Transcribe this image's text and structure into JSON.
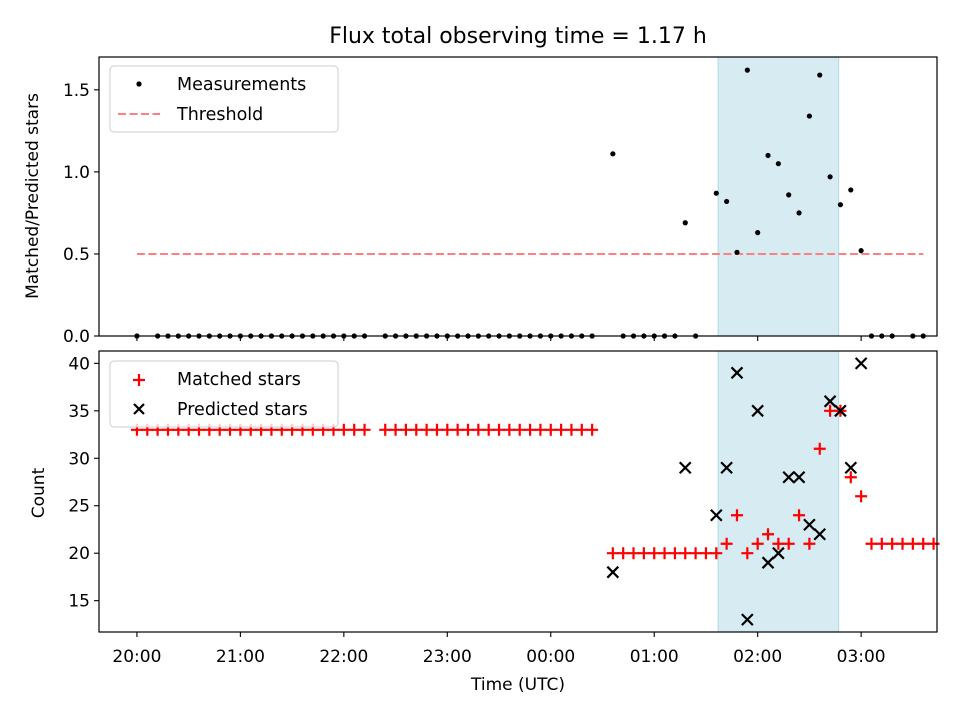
{
  "colors": {
    "span_fill": "#add8e6",
    "measurement": "#000000",
    "threshold": "#ff7f7f",
    "matched": "#ff0000",
    "predicted": "#000000"
  },
  "chart_data": [
    {
      "type": "scatter",
      "title": "Flux total observing time = 1.17 h",
      "ylabel": "Matched/Predicted stars",
      "xlabel": "",
      "xlim": [
        "19:38",
        "03:44"
      ],
      "ylim": [
        0,
        1.7
      ],
      "yticks": [
        "0.0",
        "0.5",
        "1.0",
        "1.5"
      ],
      "ytick_values": [
        0,
        0.5,
        1.0,
        1.5
      ],
      "xticks_shown": false,
      "highlight_span": [
        "01:37",
        "02:47"
      ],
      "legend_position": "upper left",
      "series": [
        {
          "name": "Measurements",
          "marker": "dot",
          "points": [
            [
              "20:00",
              0
            ],
            [
              "20:12",
              0
            ],
            [
              "20:18",
              0
            ],
            [
              "20:24",
              0
            ],
            [
              "20:30",
              0
            ],
            [
              "20:36",
              0
            ],
            [
              "20:42",
              0
            ],
            [
              "20:48",
              0
            ],
            [
              "20:54",
              0
            ],
            [
              "21:00",
              0
            ],
            [
              "21:06",
              0
            ],
            [
              "21:12",
              0
            ],
            [
              "21:18",
              0
            ],
            [
              "21:24",
              0
            ],
            [
              "21:30",
              0
            ],
            [
              "21:36",
              0
            ],
            [
              "21:42",
              0
            ],
            [
              "21:48",
              0
            ],
            [
              "21:54",
              0
            ],
            [
              "22:00",
              0
            ],
            [
              "22:06",
              0
            ],
            [
              "22:12",
              0
            ],
            [
              "22:24",
              0
            ],
            [
              "22:30",
              0
            ],
            [
              "22:36",
              0
            ],
            [
              "22:42",
              0
            ],
            [
              "22:48",
              0
            ],
            [
              "22:54",
              0
            ],
            [
              "23:00",
              0
            ],
            [
              "23:06",
              0
            ],
            [
              "23:12",
              0
            ],
            [
              "23:18",
              0
            ],
            [
              "23:24",
              0
            ],
            [
              "23:30",
              0
            ],
            [
              "23:36",
              0
            ],
            [
              "23:42",
              0
            ],
            [
              "23:48",
              0
            ],
            [
              "23:54",
              0
            ],
            [
              "00:00",
              0
            ],
            [
              "00:06",
              0
            ],
            [
              "00:12",
              0
            ],
            [
              "00:18",
              0
            ],
            [
              "00:24",
              0
            ],
            [
              "00:36",
              1.11
            ],
            [
              "00:42",
              0
            ],
            [
              "00:48",
              0
            ],
            [
              "00:54",
              0
            ],
            [
              "01:00",
              0
            ],
            [
              "01:06",
              0
            ],
            [
              "01:12",
              0
            ],
            [
              "01:18",
              0.69
            ],
            [
              "01:24",
              0
            ],
            [
              "01:36",
              0.87
            ],
            [
              "01:42",
              0.82
            ],
            [
              "01:48",
              0.51
            ],
            [
              "01:54",
              1.62
            ],
            [
              "02:00",
              0.63
            ],
            [
              "02:06",
              1.1
            ],
            [
              "02:12",
              1.05
            ],
            [
              "02:18",
              0.86
            ],
            [
              "02:24",
              0.75
            ],
            [
              "02:30",
              1.34
            ],
            [
              "02:36",
              1.59
            ],
            [
              "02:42",
              0.97
            ],
            [
              "02:48",
              0.8
            ],
            [
              "02:54",
              0.89
            ],
            [
              "03:00",
              0.52
            ],
            [
              "03:06",
              0
            ],
            [
              "03:12",
              0
            ],
            [
              "03:18",
              0
            ],
            [
              "03:30",
              0
            ],
            [
              "03:36",
              0
            ]
          ]
        },
        {
          "name": "Threshold",
          "marker": "dashed-line",
          "x": [
            "20:00",
            "03:36"
          ],
          "y": [
            0.5,
            0.5
          ]
        }
      ]
    },
    {
      "type": "scatter",
      "title": "",
      "ylabel": "Count",
      "xlabel": "Time (UTC)",
      "xlim": [
        "19:38",
        "03:44"
      ],
      "ylim": [
        11.7,
        41.3
      ],
      "yticks": [
        "15",
        "20",
        "25",
        "30",
        "35",
        "40"
      ],
      "ytick_values": [
        15,
        20,
        25,
        30,
        35,
        40
      ],
      "xticks": [
        "20:00",
        "21:00",
        "22:00",
        "23:00",
        "00:00",
        "01:00",
        "02:00",
        "03:00"
      ],
      "highlight_span": [
        "01:37",
        "02:47"
      ],
      "legend_position": "upper left",
      "series": [
        {
          "name": "Matched stars",
          "marker": "plus",
          "points": [
            [
              "20:00",
              33
            ],
            [
              "20:06",
              33
            ],
            [
              "20:12",
              33
            ],
            [
              "20:18",
              33
            ],
            [
              "20:24",
              33
            ],
            [
              "20:30",
              33
            ],
            [
              "20:36",
              33
            ],
            [
              "20:42",
              33
            ],
            [
              "20:48",
              33
            ],
            [
              "20:54",
              33
            ],
            [
              "21:00",
              33
            ],
            [
              "21:06",
              33
            ],
            [
              "21:12",
              33
            ],
            [
              "21:18",
              33
            ],
            [
              "21:24",
              33
            ],
            [
              "21:30",
              33
            ],
            [
              "21:36",
              33
            ],
            [
              "21:42",
              33
            ],
            [
              "21:48",
              33
            ],
            [
              "21:54",
              33
            ],
            [
              "22:00",
              33
            ],
            [
              "22:06",
              33
            ],
            [
              "22:12",
              33
            ],
            [
              "22:24",
              33
            ],
            [
              "22:30",
              33
            ],
            [
              "22:36",
              33
            ],
            [
              "22:42",
              33
            ],
            [
              "22:48",
              33
            ],
            [
              "22:54",
              33
            ],
            [
              "23:00",
              33
            ],
            [
              "23:06",
              33
            ],
            [
              "23:12",
              33
            ],
            [
              "23:18",
              33
            ],
            [
              "23:24",
              33
            ],
            [
              "23:30",
              33
            ],
            [
              "23:36",
              33
            ],
            [
              "23:42",
              33
            ],
            [
              "23:48",
              33
            ],
            [
              "23:54",
              33
            ],
            [
              "00:00",
              33
            ],
            [
              "00:06",
              33
            ],
            [
              "00:12",
              33
            ],
            [
              "00:18",
              33
            ],
            [
              "00:24",
              33
            ],
            [
              "00:36",
              20
            ],
            [
              "00:42",
              20
            ],
            [
              "00:48",
              20
            ],
            [
              "00:54",
              20
            ],
            [
              "01:00",
              20
            ],
            [
              "01:06",
              20
            ],
            [
              "01:12",
              20
            ],
            [
              "01:18",
              20
            ],
            [
              "01:24",
              20
            ],
            [
              "01:30",
              20
            ],
            [
              "01:36",
              20
            ],
            [
              "01:42",
              21
            ],
            [
              "01:48",
              24
            ],
            [
              "01:54",
              20
            ],
            [
              "02:00",
              21
            ],
            [
              "02:06",
              22
            ],
            [
              "02:12",
              21
            ],
            [
              "02:18",
              21
            ],
            [
              "02:24",
              24
            ],
            [
              "02:30",
              21
            ],
            [
              "02:36",
              31
            ],
            [
              "02:42",
              35
            ],
            [
              "02:48",
              35
            ],
            [
              "02:54",
              28
            ],
            [
              "03:00",
              26
            ],
            [
              "03:06",
              21
            ],
            [
              "03:12",
              21
            ],
            [
              "03:18",
              21
            ],
            [
              "03:24",
              21
            ],
            [
              "03:30",
              21
            ],
            [
              "03:36",
              21
            ],
            [
              "03:42",
              21
            ]
          ]
        },
        {
          "name": "Predicted stars",
          "marker": "x",
          "points": [
            [
              "00:36",
              18
            ],
            [
              "01:18",
              29
            ],
            [
              "01:36",
              24
            ],
            [
              "01:42",
              29
            ],
            [
              "01:48",
              39
            ],
            [
              "01:54",
              13
            ],
            [
              "02:00",
              35
            ],
            [
              "02:06",
              19
            ],
            [
              "02:12",
              20
            ],
            [
              "02:18",
              28
            ],
            [
              "02:24",
              28
            ],
            [
              "02:30",
              23
            ],
            [
              "02:36",
              22
            ],
            [
              "02:42",
              36
            ],
            [
              "02:48",
              35
            ],
            [
              "02:54",
              29
            ],
            [
              "03:00",
              40
            ]
          ]
        }
      ]
    }
  ]
}
